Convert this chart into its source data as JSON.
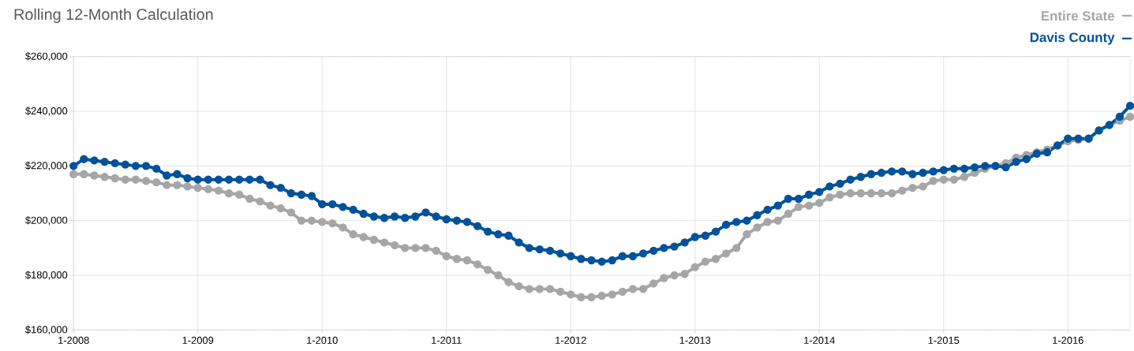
{
  "chart_data": {
    "type": "line",
    "title": "Rolling 12-Month Calculation",
    "x": [
      "2008-01",
      "2008-02",
      "2008-03",
      "2008-04",
      "2008-05",
      "2008-06",
      "2008-07",
      "2008-08",
      "2008-09",
      "2008-10",
      "2008-11",
      "2008-12",
      "2009-01",
      "2009-02",
      "2009-03",
      "2009-04",
      "2009-05",
      "2009-06",
      "2009-07",
      "2009-08",
      "2009-09",
      "2009-10",
      "2009-11",
      "2009-12",
      "2010-01",
      "2010-02",
      "2010-03",
      "2010-04",
      "2010-05",
      "2010-06",
      "2010-07",
      "2010-08",
      "2010-09",
      "2010-10",
      "2010-11",
      "2010-12",
      "2011-01",
      "2011-02",
      "2011-03",
      "2011-04",
      "2011-05",
      "2011-06",
      "2011-07",
      "2011-08",
      "2011-09",
      "2011-10",
      "2011-11",
      "2011-12",
      "2012-01",
      "2012-02",
      "2012-03",
      "2012-04",
      "2012-05",
      "2012-06",
      "2012-07",
      "2012-08",
      "2012-09",
      "2012-10",
      "2012-11",
      "2012-12",
      "2013-01",
      "2013-02",
      "2013-03",
      "2013-04",
      "2013-05",
      "2013-06",
      "2013-07",
      "2013-08",
      "2013-09",
      "2013-10",
      "2013-11",
      "2013-12",
      "2014-01",
      "2014-02",
      "2014-03",
      "2014-04",
      "2014-05",
      "2014-06",
      "2014-07",
      "2014-08",
      "2014-09",
      "2014-10",
      "2014-11",
      "2014-12",
      "2015-01",
      "2015-02",
      "2015-03",
      "2015-04",
      "2015-05",
      "2015-06",
      "2015-07",
      "2015-08",
      "2015-09",
      "2015-10",
      "2015-11",
      "2015-12",
      "2016-01",
      "2016-02",
      "2016-03",
      "2016-04",
      "2016-05",
      "2016-06",
      "2016-07"
    ],
    "series": [
      {
        "name": "Entire State",
        "color": "#a6a6a6",
        "values": [
          217000,
          217000,
          216500,
          216000,
          215500,
          215000,
          215000,
          214500,
          214000,
          213000,
          213000,
          212500,
          212000,
          211500,
          211000,
          210000,
          209500,
          208000,
          207000,
          205500,
          204500,
          203000,
          200000,
          200000,
          199500,
          199000,
          197500,
          195000,
          194000,
          193000,
          192000,
          191000,
          190000,
          190000,
          190000,
          189000,
          187000,
          186000,
          185500,
          184000,
          182000,
          180000,
          177500,
          176000,
          175000,
          175000,
          175000,
          174000,
          173000,
          172000,
          172000,
          172500,
          173000,
          174000,
          175000,
          175000,
          177000,
          179000,
          180000,
          180500,
          183000,
          185000,
          186000,
          188000,
          190000,
          195000,
          197500,
          199500,
          200000,
          202500,
          205000,
          205500,
          206500,
          208500,
          209500,
          210000,
          210000,
          210000,
          210000,
          210000,
          211000,
          212000,
          212500,
          214500,
          215000,
          215000,
          216000,
          217500,
          219000,
          220000,
          221000,
          223000,
          224000,
          225000,
          226000,
          227500,
          229000,
          229500,
          230000,
          233000,
          235000,
          236500,
          238000
        ]
      },
      {
        "name": "Davis County",
        "color": "#00529b",
        "values": [
          220000,
          222500,
          222000,
          221500,
          221000,
          220500,
          220000,
          220000,
          219000,
          216500,
          217000,
          215500,
          215000,
          215000,
          215000,
          215000,
          215000,
          215000,
          215000,
          213000,
          212000,
          210000,
          209500,
          209000,
          206000,
          206000,
          205000,
          204000,
          202500,
          201500,
          201000,
          201500,
          201000,
          201500,
          203000,
          201500,
          200500,
          200000,
          199500,
          198000,
          196000,
          195000,
          194500,
          192000,
          190000,
          189500,
          189000,
          188000,
          187000,
          186000,
          185500,
          185000,
          185500,
          187000,
          187000,
          188000,
          189000,
          190000,
          190500,
          192000,
          194000,
          194500,
          196000,
          198500,
          199500,
          200000,
          202000,
          204000,
          205500,
          208000,
          208000,
          209500,
          210500,
          212500,
          213500,
          215000,
          216000,
          217000,
          217500,
          218000,
          218000,
          217000,
          217500,
          218000,
          218500,
          219000,
          219000,
          219500,
          220000,
          220000,
          219500,
          221500,
          222500,
          224500,
          225000,
          227500,
          230000,
          230000,
          230000,
          233000,
          235000,
          238000,
          242000
        ]
      }
    ],
    "xlim": [
      "2008-01",
      "2016-07"
    ],
    "xticks": [
      {
        "value": "2008-01",
        "label": "1-2008"
      },
      {
        "value": "2009-01",
        "label": "1-2009"
      },
      {
        "value": "2010-01",
        "label": "1-2010"
      },
      {
        "value": "2011-01",
        "label": "1-2011"
      },
      {
        "value": "2012-01",
        "label": "1-2012"
      },
      {
        "value": "2013-01",
        "label": "1-2013"
      },
      {
        "value": "2014-01",
        "label": "1-2014"
      },
      {
        "value": "2015-01",
        "label": "1-2015"
      },
      {
        "value": "2016-01",
        "label": "1-2016"
      }
    ],
    "ylim": [
      160000,
      260000
    ],
    "yticks": [
      {
        "value": 160000,
        "label": "$160,000"
      },
      {
        "value": 180000,
        "label": "$180,000"
      },
      {
        "value": 200000,
        "label": "$200,000"
      },
      {
        "value": 220000,
        "label": "$220,000"
      },
      {
        "value": 240000,
        "label": "$240,000"
      },
      {
        "value": 260000,
        "label": "$260,000"
      }
    ],
    "grid": true,
    "legend": "top right",
    "marker": "circle",
    "line_style": "solid"
  }
}
